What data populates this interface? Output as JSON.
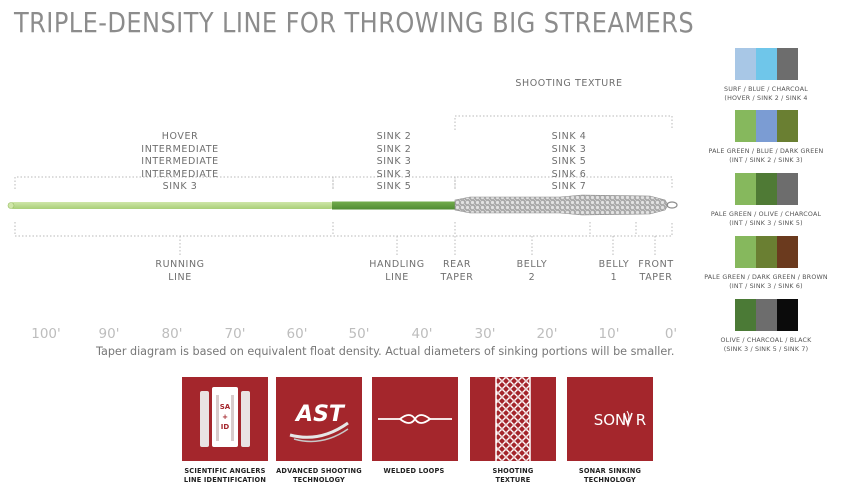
{
  "title": "TRIPLE-DENSITY LINE FOR THROWING BIG STREAMERS",
  "diagram": {
    "shooting_texture_label": "SHOOTING TEXTURE",
    "top_labels": [
      {
        "id": "running",
        "text": "HOVER\nINTERMEDIATE\nINTERMEDIATE\nINTERMEDIATE\nSINK 3"
      },
      {
        "id": "handling",
        "text": "SINK 2\nSINK 2\nSINK 3\nSINK 3\nSINK 5"
      },
      {
        "id": "head",
        "text": "SINK 4\nSINK 3\nSINK 5\nSINK 6\nSINK 7"
      }
    ],
    "sections": [
      {
        "id": "running-line",
        "text": "RUNNING\nLINE"
      },
      {
        "id": "handling-line",
        "text": "HANDLING\nLINE"
      },
      {
        "id": "rear-taper",
        "text": "REAR\nTAPER"
      },
      {
        "id": "belly-2",
        "text": "BELLY\n2"
      },
      {
        "id": "belly-1",
        "text": "BELLY\n1"
      },
      {
        "id": "front-taper",
        "text": "FRONT\nTAPER"
      }
    ],
    "scale": [
      "100'",
      "90'",
      "80'",
      "70'",
      "60'",
      "50'",
      "40'",
      "30'",
      "20'",
      "10'",
      "0'"
    ],
    "note": "Taper diagram is based on equivalent float density.  Actual diameters of sinking portions will be smaller.",
    "colors": {
      "running": "#b7d98a",
      "handling": "#5c9a3c",
      "head": "#8f8f8f"
    }
  },
  "swatches": [
    {
      "colors": [
        "#a8c7e6",
        "#6fc6ea",
        "#6d6d6d"
      ],
      "label": "SURF / BLUE / CHARCOAL\n(HOVER / SINK 2 / SINK 4"
    },
    {
      "colors": [
        "#86b85d",
        "#7b9cd3",
        "#6a7f32"
      ],
      "label": "PALE GREEN / BLUE / DARK GREEN\n(INT / SINK 2 / SINK 3)"
    },
    {
      "colors": [
        "#86b85d",
        "#4f7a35",
        "#6d6d6d"
      ],
      "label": "PALE GREEN / OLIVE / CHARCOAL\n(INT / SINK 3 / SINK 5)"
    },
    {
      "colors": [
        "#86b85d",
        "#6a7f32",
        "#6b3a1e"
      ],
      "label": "PALE GREEN / DARK GREEN / BROWN\n(INT / SINK 3 / SINK 6)"
    },
    {
      "colors": [
        "#4b7a36",
        "#6d6d6d",
        "#0b0b0b"
      ],
      "label": "OLIVE / CHARCOAL / BLACK\n(SINK 3 / SINK 5 / SINK 7)"
    }
  ],
  "features": [
    {
      "icon": "sa-id-icon",
      "badge": "SA+ID",
      "caption": "SCIENTIFIC ANGLERS\nLINE IDENTIFICATION"
    },
    {
      "icon": "ast-icon",
      "badge": "AST",
      "caption": "ADVANCED SHOOTING\nTECHNOLOGY"
    },
    {
      "icon": "welded-loops-icon",
      "caption": "WELDED LOOPS"
    },
    {
      "icon": "shooting-texture-icon",
      "caption": "SHOOTING\nTEXTURE"
    },
    {
      "icon": "sonar-icon",
      "badge": "SONAR",
      "caption": "SONAR SINKING\nTECHNOLOGY"
    }
  ],
  "accent_color": "#a4262c"
}
